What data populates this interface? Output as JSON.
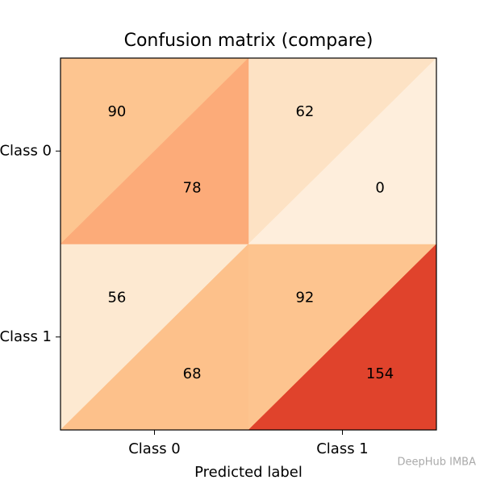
{
  "chart_data": {
    "type": "split-heatmap",
    "title": "Confusion matrix (compare)",
    "x_label": "Predicted label",
    "x_categories": [
      "Class 0",
      "Class 1"
    ],
    "y_categories": [
      "Class 0",
      "Class 1"
    ],
    "matrices": [
      {
        "values": [
          [
            90,
            62
          ],
          [
            56,
            92
          ]
        ],
        "colors": [
          [
            "#fdc590",
            "#fde2c4"
          ],
          [
            "#fde9d1",
            "#fdc48f"
          ]
        ]
      },
      {
        "values": [
          [
            78,
            0
          ],
          [
            68,
            154
          ]
        ],
        "colors": [
          [
            "#fcab79",
            "#feeedc"
          ],
          [
            "#fdc18b",
            "#e0432c"
          ]
        ]
      }
    ],
    "watermark": "DeepHub IMBA"
  }
}
